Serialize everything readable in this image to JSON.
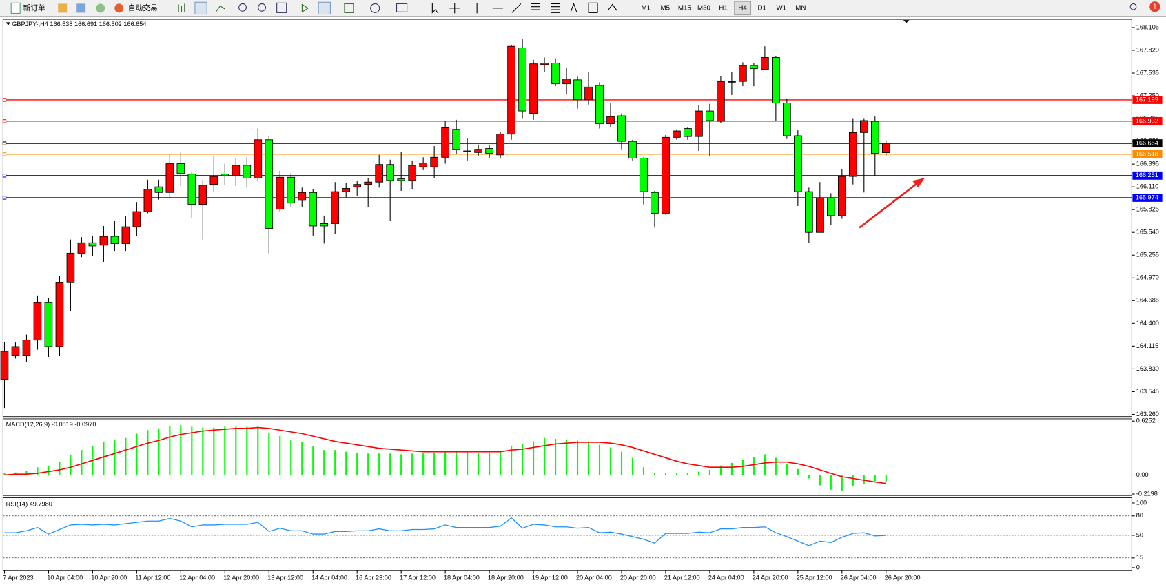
{
  "toolbar": {
    "new_order": "新订单",
    "auto_trading": "自动交易",
    "timeframes": [
      "M1",
      "M5",
      "M15",
      "M30",
      "H1",
      "H4",
      "D1",
      "W1",
      "MN"
    ],
    "active_timeframe": 5,
    "notifications": 1
  },
  "chart_data": [
    {
      "type": "candlestick",
      "title": "GBPJPY-,H4 166.538 166.691 166.502 166.654",
      "up_color": "#ff0000",
      "down_color": "#00ff00",
      "grid": false,
      "categories": [
        "7 Apr 2023",
        null,
        null,
        null,
        "10 Apr 04:00",
        null,
        null,
        null,
        "10 Apr 20:00",
        null,
        null,
        null,
        "11 Apr 12:00",
        null,
        null,
        null,
        "12 Apr 04:00",
        null,
        null,
        null,
        "12 Apr 20:00",
        null,
        null,
        null,
        "13 Apr 12:00",
        null,
        null,
        null,
        "14 Apr 04:00",
        null,
        null,
        null,
        "16 Apr 23:00",
        null,
        null,
        null,
        "17 Apr 12:00",
        null,
        null,
        null,
        "18 Apr 04:00",
        null,
        null,
        null,
        "18 Apr 20:00",
        null,
        null,
        null,
        "19 Apr 12:00",
        null,
        null,
        null,
        "20 Apr 04:00",
        null,
        null,
        null,
        "20 Apr 20:00",
        null,
        null,
        null,
        "21 Apr 12:00",
        null,
        null,
        null,
        "24 Apr 04:00",
        null,
        null,
        null,
        "24 Apr 20:00",
        null,
        null,
        null,
        "25 Apr 12:00",
        null,
        null,
        null,
        "26 Apr 04:00",
        null,
        null,
        null,
        "26 Apr 20:00"
      ],
      "open": [
        163.7,
        164.0,
        164.0,
        164.19,
        164.66,
        164.11,
        164.91,
        165.28,
        165.41,
        165.38,
        165.49,
        165.4,
        165.61,
        165.8,
        166.11,
        166.04,
        166.4,
        166.27,
        165.89,
        166.14,
        166.27,
        166.25,
        166.38,
        166.22,
        166.7,
        165.83,
        166.23,
        165.94,
        166.04,
        165.65,
        165.65,
        166.05,
        166.11,
        166.14,
        166.17,
        166.39,
        166.21,
        166.19,
        166.36,
        166.36,
        166.48,
        166.83,
        166.55,
        166.54,
        166.59,
        166.51,
        166.77,
        167.85,
        167.03,
        167.64,
        167.66,
        167.4,
        167.45,
        167.2,
        167.38,
        166.9,
        167.0,
        166.68,
        166.47,
        166.04,
        165.78,
        166.73,
        166.84,
        166.74,
        167.06,
        166.93,
        167.42,
        167.43,
        167.63,
        167.58,
        167.73,
        167.16,
        166.75,
        166.05,
        165.54,
        165.97,
        165.75,
        166.24,
        166.79,
        166.93,
        166.538
      ],
      "high": [
        164.17,
        164.16,
        164.26,
        164.75,
        164.72,
        164.99,
        165.45,
        165.48,
        165.5,
        165.62,
        165.68,
        165.74,
        165.92,
        166.2,
        166.2,
        166.52,
        166.54,
        166.3,
        166.2,
        166.5,
        166.4,
        166.47,
        166.48,
        166.84,
        166.74,
        166.31,
        166.28,
        166.1,
        166.08,
        165.75,
        166.17,
        166.16,
        166.18,
        166.22,
        166.51,
        166.45,
        166.55,
        166.44,
        166.48,
        166.62,
        166.93,
        166.95,
        166.72,
        166.64,
        166.63,
        166.8,
        167.89,
        167.96,
        167.7,
        167.73,
        167.72,
        167.6,
        167.49,
        167.55,
        167.42,
        167.16,
        167.03,
        166.7,
        166.48,
        166.06,
        166.76,
        166.83,
        166.86,
        167.13,
        167.15,
        167.5,
        167.55,
        167.67,
        167.66,
        167.87,
        167.75,
        167.21,
        166.82,
        166.1,
        166.17,
        166.03,
        166.33,
        166.97,
        166.97,
        166.99,
        166.691
      ],
      "low": [
        163.34,
        163.96,
        163.92,
        164.07,
        163.98,
        163.99,
        164.55,
        165.23,
        165.24,
        165.17,
        165.3,
        165.3,
        165.49,
        165.78,
        165.95,
        165.96,
        166.12,
        165.72,
        165.45,
        166.05,
        166.13,
        166.12,
        166.1,
        166.18,
        165.28,
        165.8,
        165.86,
        165.86,
        165.5,
        165.4,
        165.52,
        165.98,
        166.0,
        165.86,
        166.1,
        165.68,
        166.06,
        166.08,
        166.32,
        166.22,
        166.4,
        166.52,
        166.44,
        166.5,
        166.47,
        166.47,
        166.7,
        166.97,
        166.95,
        167.55,
        167.37,
        167.27,
        167.09,
        167.14,
        166.84,
        166.86,
        166.58,
        166.44,
        165.89,
        165.6,
        165.76,
        166.7,
        166.7,
        166.56,
        166.5,
        166.91,
        167.26,
        167.37,
        167.37,
        167.57,
        166.94,
        166.71,
        165.87,
        165.41,
        165.54,
        165.63,
        165.71,
        166.14,
        166.04,
        166.25,
        166.502
      ],
      "close": [
        164.05,
        164.11,
        164.19,
        164.66,
        164.11,
        164.91,
        165.28,
        165.41,
        165.37,
        165.49,
        165.4,
        165.61,
        165.8,
        166.08,
        166.04,
        166.4,
        166.28,
        165.89,
        166.13,
        166.24,
        166.25,
        166.38,
        166.22,
        166.7,
        165.59,
        166.23,
        165.91,
        166.04,
        165.62,
        165.62,
        166.05,
        166.09,
        166.14,
        166.17,
        166.39,
        166.19,
        166.19,
        166.38,
        166.41,
        166.48,
        166.85,
        166.58,
        166.56,
        166.58,
        166.53,
        166.77,
        167.87,
        167.06,
        167.65,
        167.66,
        167.4,
        167.46,
        167.2,
        167.36,
        166.9,
        166.99,
        166.68,
        166.47,
        166.05,
        165.78,
        166.73,
        166.81,
        166.74,
        167.06,
        166.94,
        167.43,
        167.43,
        167.63,
        167.59,
        167.73,
        167.16,
        166.75,
        166.05,
        165.54,
        165.97,
        165.75,
        166.24,
        166.79,
        166.94,
        166.53,
        166.654
      ],
      "ylim": [
        163.26,
        168.105
      ],
      "yticks": [
        {
          "value": 163.26,
          "label": "163.260"
        },
        163.545,
        {
          "value": 163.83,
          "label": "163.830"
        },
        164.115,
        {
          "value": 164.4,
          "label": "164.400"
        },
        164.685,
        {
          "value": 164.97,
          "label": "164.970"
        },
        165.255,
        {
          "value": 165.54,
          "label": "165.540"
        },
        165.825,
        {
          "value": 166.11,
          "label": "166.110"
        },
        166.395,
        {
          "value": 166.68,
          "label": "166.680"
        },
        166.965,
        {
          "value": 167.25,
          "label": "167.250"
        },
        167.535,
        {
          "value": 167.82,
          "label": "167.820"
        },
        168.105
      ],
      "hlines": [
        {
          "value": 167.199,
          "color": "#ff0000"
        },
        {
          "value": 166.932,
          "color": "#ff0000"
        },
        {
          "value": 166.654,
          "color": "#000000"
        },
        {
          "value": 166.518,
          "color": "#ff8c00"
        },
        {
          "value": 166.251,
          "color": "#0000ff"
        },
        {
          "value": 165.974,
          "color": "#0000ff"
        }
      ]
    },
    {
      "type": "macd",
      "title": "MACD(12,26,9) -0.0819 -0.0970",
      "ylim": [
        -0.2198,
        0.6252
      ],
      "yticks": [
        -0.2198,
        {
          "value": 0,
          "label": "0.00"
        },
        0.6252
      ],
      "series": [
        {
          "color": "#00ff00",
          "values": [
            0.02,
            0.03,
            0.05,
            0.09,
            0.1,
            0.15,
            0.23,
            0.29,
            0.34,
            0.38,
            0.41,
            0.43,
            0.48,
            0.52,
            0.54,
            0.57,
            0.58,
            0.56,
            0.55,
            0.55,
            0.56,
            0.56,
            0.56,
            0.56,
            0.49,
            0.45,
            0.41,
            0.38,
            0.33,
            0.29,
            0.29,
            0.27,
            0.26,
            0.25,
            0.25,
            0.25,
            0.24,
            0.25,
            0.25,
            0.26,
            0.28,
            0.28,
            0.27,
            0.26,
            0.26,
            0.28,
            0.34,
            0.36,
            0.39,
            0.43,
            0.42,
            0.41,
            0.4,
            0.39,
            0.35,
            0.32,
            0.27,
            0.2,
            0.09,
            0.02,
            0.02,
            0.02,
            0.02,
            0.04,
            0.06,
            0.11,
            0.14,
            0.18,
            0.21,
            0.24,
            0.2,
            0.13,
            0.07,
            -0.04,
            -0.12,
            -0.17,
            -0.18,
            -0.13,
            -0.1,
            -0.07,
            -0.0819
          ]
        },
        {
          "color": "#ff0000",
          "values": [
            0.0,
            0.01,
            0.01,
            0.02,
            0.04,
            0.06,
            0.09,
            0.13,
            0.17,
            0.21,
            0.25,
            0.29,
            0.33,
            0.37,
            0.4,
            0.44,
            0.47,
            0.49,
            0.51,
            0.52,
            0.53,
            0.54,
            0.54,
            0.55,
            0.54,
            0.52,
            0.5,
            0.48,
            0.45,
            0.42,
            0.39,
            0.37,
            0.35,
            0.33,
            0.31,
            0.3,
            0.29,
            0.28,
            0.27,
            0.27,
            0.27,
            0.27,
            0.27,
            0.27,
            0.27,
            0.27,
            0.29,
            0.3,
            0.32,
            0.34,
            0.36,
            0.37,
            0.38,
            0.38,
            0.38,
            0.37,
            0.35,
            0.32,
            0.28,
            0.24,
            0.2,
            0.16,
            0.13,
            0.11,
            0.09,
            0.09,
            0.09,
            0.1,
            0.12,
            0.14,
            0.15,
            0.15,
            0.13,
            0.1,
            0.06,
            0.02,
            -0.02,
            -0.04,
            -0.06,
            -0.08,
            -0.097
          ]
        }
      ]
    },
    {
      "type": "line",
      "title": "RSI(14) 49.7980",
      "color": "#1e90ff",
      "grid": "dotted",
      "ylim": [
        0,
        100
      ],
      "yticks": [
        0,
        15,
        50,
        80,
        100
      ],
      "values": [
        54,
        54,
        57,
        62,
        52,
        59,
        66,
        67,
        66,
        67,
        66,
        68,
        70,
        72,
        72,
        76,
        72,
        63,
        66,
        66,
        67,
        67,
        67,
        70,
        56,
        61,
        57,
        57,
        52,
        52,
        56,
        56,
        57,
        57,
        60,
        57,
        57,
        59,
        59,
        60,
        66,
        62,
        62,
        62,
        62,
        64,
        77,
        61,
        67,
        66,
        63,
        63,
        61,
        62,
        54,
        55,
        52,
        48,
        44,
        38,
        53,
        53,
        53,
        55,
        54,
        60,
        60,
        62,
        62,
        63,
        54,
        48,
        41,
        34,
        41,
        39,
        47,
        53,
        54,
        49,
        49.798
      ]
    }
  ]
}
